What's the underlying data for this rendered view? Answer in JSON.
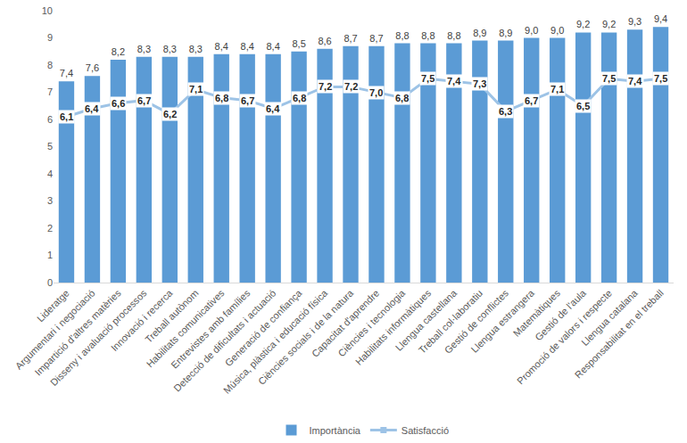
{
  "chart_data": {
    "type": "bar",
    "categories": [
      "Lideratge",
      "Argumentari i negociació",
      "Impartició d'altres matèries",
      "Disseny i avaluació processos",
      "Innovació i recerca",
      "Treball autònom",
      "Habilitats comunicatives",
      "Entrevistes amb famílies",
      "Detecció de dificultats i actuació",
      "Generació de confiança",
      "Música, plàstica i educació física",
      "Ciències socials i de la natura",
      "Capacitat d'aprendre",
      "Ciències i tecnologia",
      "Habilitats informàtiques",
      "Llengua castellana",
      "Treball col·laboratiu",
      "Gestió de conflictes",
      "Llengua estrangera",
      "Matemàtiques",
      "Gestió de l'aula",
      "Promoció de valors i respecte",
      "Llengua catalana",
      "Responsabilitat en el treball"
    ],
    "series": [
      {
        "name": "Importància",
        "type": "bar",
        "color": "#5b9bd5",
        "values": [
          7.4,
          7.6,
          8.2,
          8.3,
          8.3,
          8.3,
          8.4,
          8.4,
          8.4,
          8.5,
          8.6,
          8.7,
          8.7,
          8.8,
          8.8,
          8.8,
          8.9,
          8.9,
          9.0,
          9.0,
          9.2,
          9.2,
          9.3,
          9.4
        ],
        "value_labels": [
          "7,4",
          "7,6",
          "8,2",
          "8,3",
          "8,3",
          "8,3",
          "8,4",
          "8,4",
          "8,4",
          "8,5",
          "8,6",
          "8,7",
          "8,7",
          "8,8",
          "8,8",
          "8,8",
          "8,9",
          "8,9",
          "9,0",
          "9,0",
          "9,2",
          "9,2",
          "9,3",
          "9,4"
        ]
      },
      {
        "name": "Satisfacció",
        "type": "line",
        "color": "#9dc3e6",
        "marker": "square",
        "line_style": "solid",
        "values": [
          6.1,
          6.4,
          6.6,
          6.7,
          6.2,
          7.1,
          6.8,
          6.7,
          6.4,
          6.8,
          7.2,
          7.2,
          7.0,
          6.8,
          7.5,
          7.4,
          7.3,
          6.3,
          6.7,
          7.1,
          6.5,
          7.5,
          7.4,
          7.5
        ],
        "value_labels": [
          "6,1",
          "6,4",
          "6,6",
          "6,7",
          "6,2",
          "7,1",
          "6,8",
          "6,7",
          "6,4",
          "6,8",
          "7,2",
          "7,2",
          "7,0",
          "6,8",
          "7,5",
          "7,4",
          "7,3",
          "6,3",
          "6,7",
          "7,1",
          "6,5",
          "7,5",
          "7,4",
          "7,5"
        ]
      }
    ],
    "ylim": [
      0,
      10
    ],
    "yticks": [
      0,
      1,
      2,
      3,
      4,
      5,
      6,
      7,
      8,
      9,
      10
    ],
    "grid": false,
    "legend": "bottom",
    "data_labels": true
  }
}
